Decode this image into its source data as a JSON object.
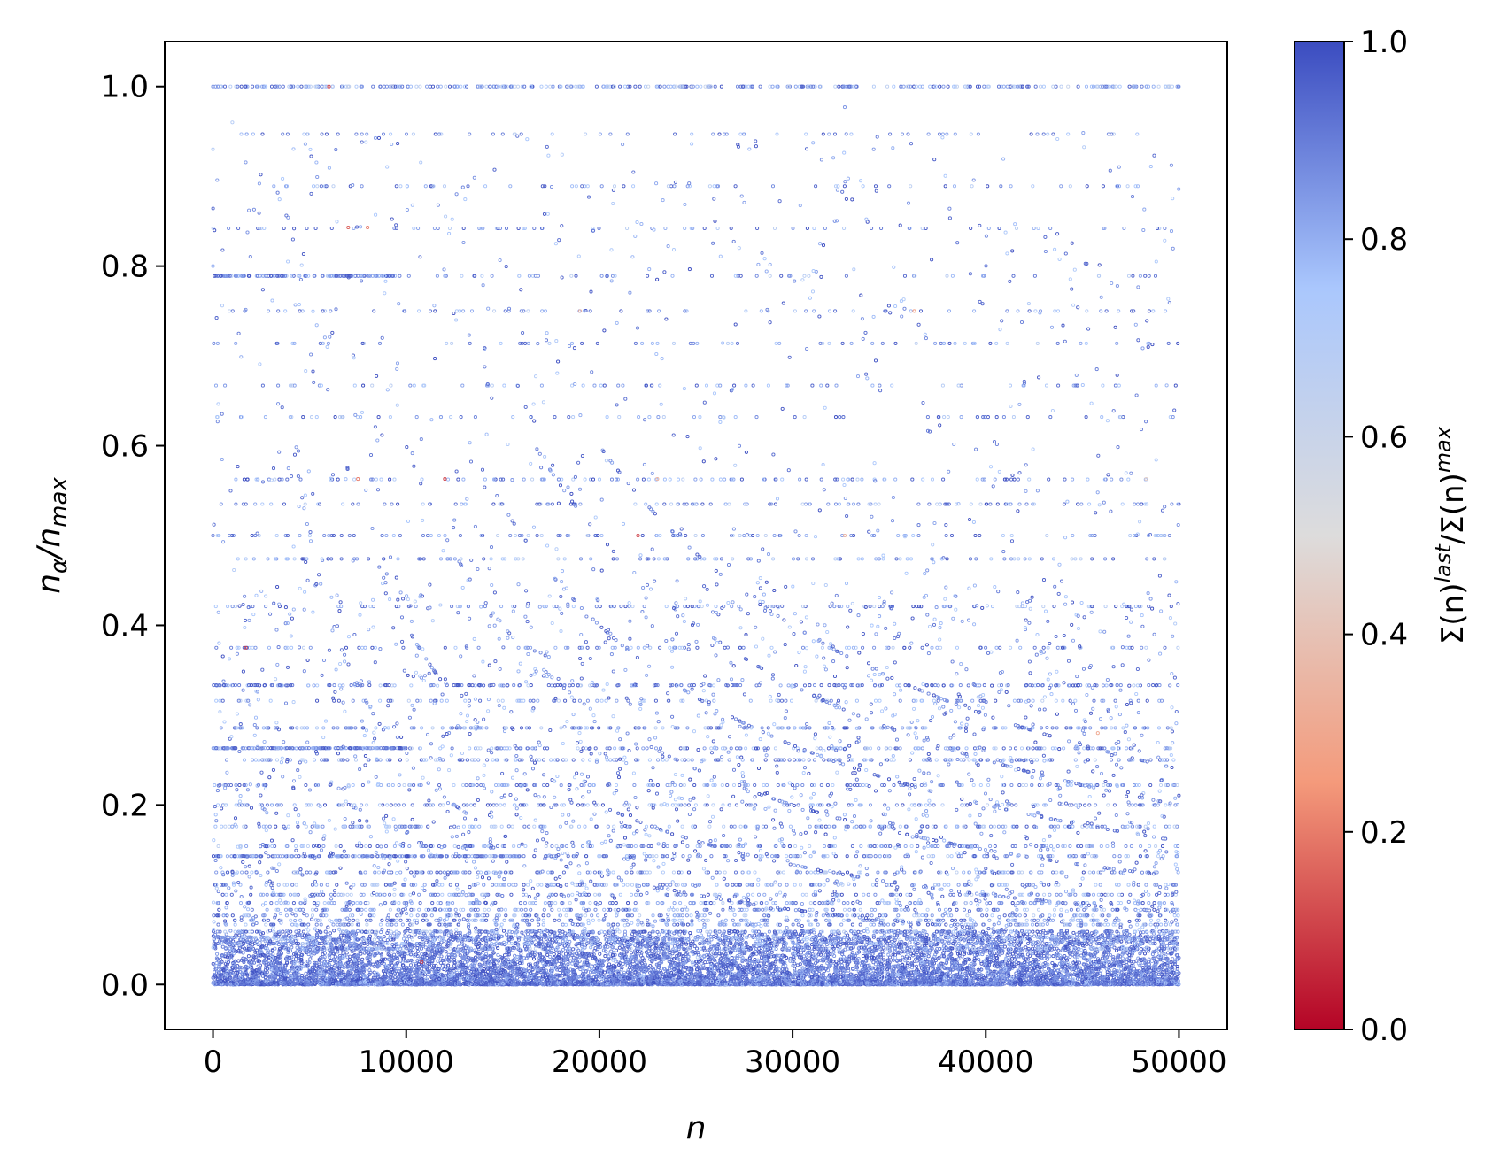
{
  "chart_data": {
    "type": "scatter",
    "title": "",
    "x_axis": {
      "label": "n",
      "range": [
        -2500,
        52500
      ],
      "ticks": [
        0,
        10000,
        20000,
        30000,
        40000,
        50000
      ],
      "tick_labels": [
        "0",
        "10000",
        "20000",
        "30000",
        "40000",
        "50000"
      ]
    },
    "y_axis": {
      "label_main": "n",
      "label_sub1": "α",
      "label_mid": "/n",
      "label_sub2": "max",
      "range": [
        -0.05,
        1.05
      ],
      "ticks": [
        0.0,
        0.2,
        0.4,
        0.6,
        0.8,
        1.0
      ],
      "tick_labels": [
        "0.0",
        "0.2",
        "0.4",
        "0.6",
        "0.8",
        "1.0"
      ]
    },
    "colorbar": {
      "colormap": "coolwarm_r",
      "range": [
        0.0,
        1.0
      ],
      "ticks": [
        0.0,
        0.2,
        0.4,
        0.6,
        0.8,
        1.0
      ],
      "tick_labels": [
        "0.0",
        "0.2",
        "0.4",
        "0.6",
        "0.8",
        "1.0"
      ],
      "label_parts": [
        "Σ(n)",
        "last",
        "/Σ(n)",
        "max"
      ],
      "colors": [
        "#b40426",
        "#f49a7b",
        "#dddcdc",
        "#aac7fd",
        "#3b4cc0"
      ]
    },
    "grid": false,
    "legend": "none",
    "n_points": 50000,
    "point_color_dominant": "#4a63d3",
    "horizontal_bands_y": [
      1.0,
      0.947,
      0.889,
      0.842,
      0.789,
      0.75,
      0.714,
      0.667,
      0.632,
      0.5625,
      0.535,
      0.5,
      0.474,
      0.421,
      0.375,
      0.333,
      0.316,
      0.2857,
      0.263,
      0.25,
      0.222,
      0.2,
      0.176,
      0.154,
      0.143,
      0.125,
      0.111,
      0.1,
      0.0909,
      0.0833,
      0.0769,
      0.0714,
      0.0667,
      0.0588,
      0.0526,
      0.05,
      0.0455,
      0.04
    ],
    "sample_points": [
      {
        "x": 0,
        "y": 1.0,
        "c": 0.85
      },
      {
        "x": 0,
        "y": 0.93,
        "c": 0.7
      },
      {
        "x": 0,
        "y": 0.8,
        "c": 0.8
      },
      {
        "x": 0,
        "y": 0.5,
        "c": 0.9
      },
      {
        "x": 1000,
        "y": 0.96,
        "c": 0.7
      },
      {
        "x": 6000,
        "y": 1.0,
        "c": 0.1
      },
      {
        "x": 7000,
        "y": 0.843,
        "c": 0.15
      },
      {
        "x": 8000,
        "y": 0.843,
        "c": 0.2
      },
      {
        "x": 7500,
        "y": 0.563,
        "c": 0.2
      },
      {
        "x": 12000,
        "y": 0.563,
        "c": 0.1
      },
      {
        "x": 19000,
        "y": 0.75,
        "c": 0.35
      },
      {
        "x": 23000,
        "y": 0.563,
        "c": 0.35
      },
      {
        "x": 32700,
        "y": 0.5,
        "c": 0.35
      },
      {
        "x": 36300,
        "y": 0.75,
        "c": 0.25
      },
      {
        "x": 1700,
        "y": 0.375,
        "c": 0.1
      },
      {
        "x": 22000,
        "y": 0.5,
        "c": 0.1
      },
      {
        "x": 45800,
        "y": 0.28,
        "c": 0.3
      },
      {
        "x": 10800,
        "y": 0.025,
        "c": 0.1
      },
      {
        "x": 32700,
        "y": 0.977,
        "c": 0.85
      },
      {
        "x": 34200,
        "y": 0.93,
        "c": 0.85
      },
      {
        "x": 36000,
        "y": 0.87,
        "c": 0.85
      },
      {
        "x": 48300,
        "y": 0.563,
        "c": 0.45
      }
    ]
  }
}
